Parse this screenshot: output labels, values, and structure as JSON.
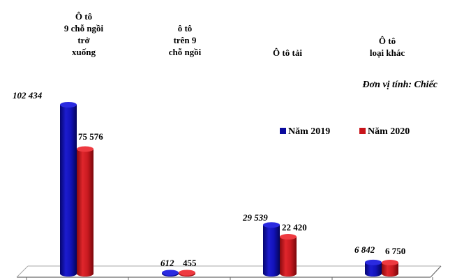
{
  "chart_data": {
    "type": "bar",
    "categories": [
      [
        "Ô tô",
        "9 chỗ ngồi",
        "trở",
        "xuống"
      ],
      [
        "ô tô",
        "trên 9",
        "chỗ ngồi"
      ],
      [
        "Ô tô tải"
      ],
      [
        "Ô tô",
        "loại khác"
      ]
    ],
    "series": [
      {
        "name": "Năm 2019",
        "values": [
          102434,
          612,
          29539,
          6842
        ],
        "labels": [
          "102 434",
          "612",
          "29 539",
          "6 842"
        ]
      },
      {
        "name": "Năm 2020",
        "values": [
          75576,
          455,
          22420,
          6750
        ],
        "labels": [
          "75 576",
          "455",
          "22 420",
          "6 750"
        ]
      }
    ],
    "unit_note": "Đơn vị tính: Chiếc",
    "ylim": [
      0,
      110000
    ],
    "legend_position": "right",
    "colors": {
      "2019": "#0b0b9e",
      "2020": "#c8141a",
      "floor": "#9a9a9a"
    }
  }
}
